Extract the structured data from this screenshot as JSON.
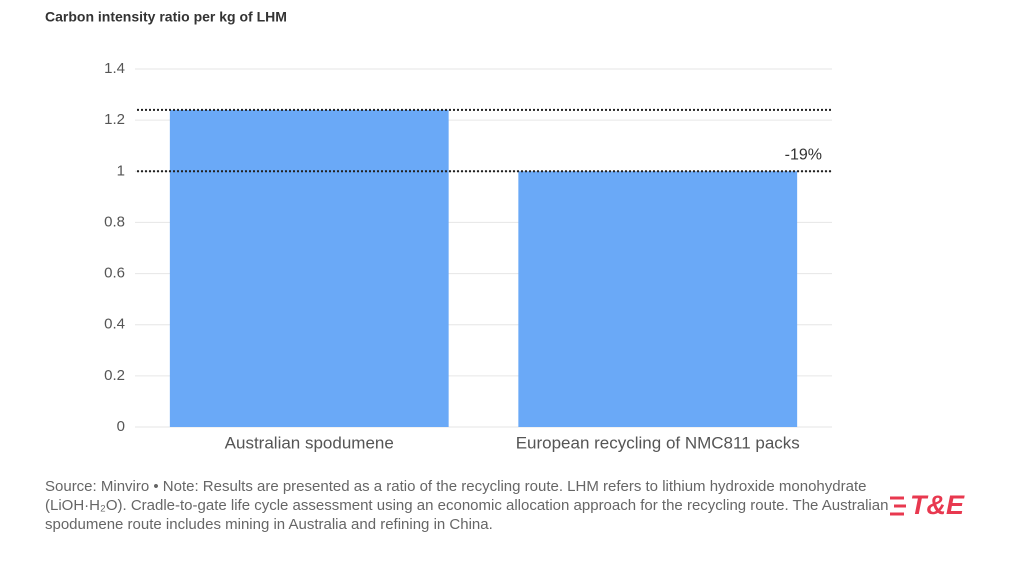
{
  "chart_data": {
    "type": "bar",
    "title": "Carbon intensity ratio per kg of LHM",
    "categories": [
      "Australian spodumene",
      "European recycling of NMC811 packs"
    ],
    "values": [
      1.24,
      1
    ],
    "color": "#6aa9f7",
    "ylim": [
      0,
      1.4
    ],
    "yticks": [
      0,
      0.2,
      0.4,
      0.6,
      0.8,
      1,
      1.2,
      1.4
    ],
    "grid": true,
    "reference_lines": [
      1.24,
      1
    ],
    "annotation": "-19%",
    "source": "Source: Minviro • Note: Results are presented as a ratio of the recycling route. LHM refers to lithium hydroxide monohydrate (LiOH·H₂O). Cradle-to-gate life cycle assessment using an economic allocation approach for the recycling route. The Australian spodumene route includes mining in Australia and refining in China.",
    "logo": "T&E"
  }
}
